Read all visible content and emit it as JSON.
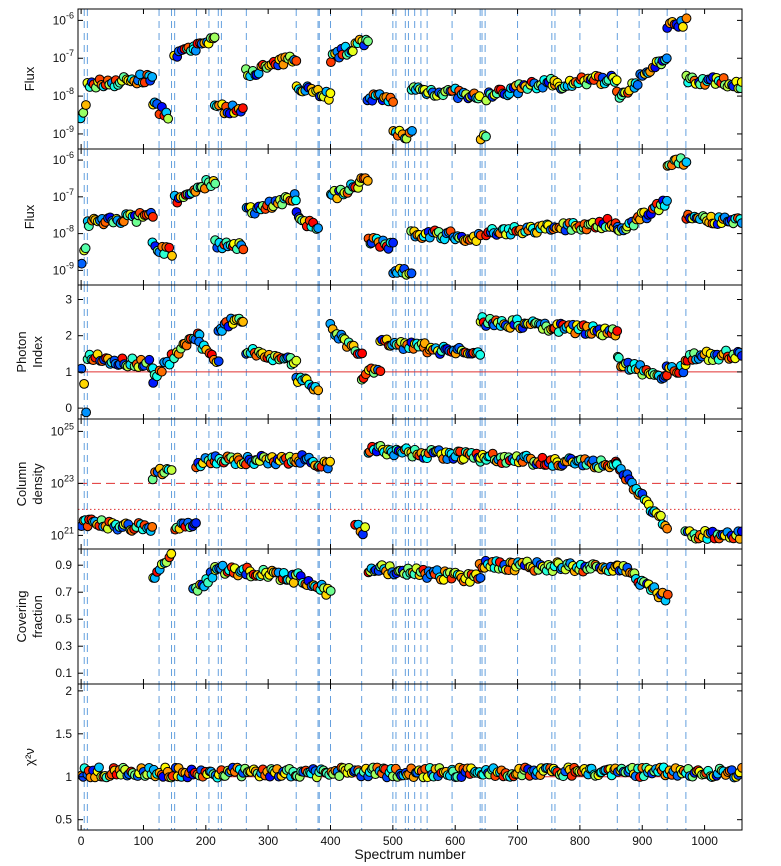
{
  "figure": {
    "xlabel": "Spectrum number",
    "xlim": [
      -5,
      1060
    ],
    "xticks": [
      0,
      100,
      200,
      300,
      400,
      500,
      600,
      700,
      800,
      900,
      1000
    ]
  },
  "event_lines": [
    5,
    10,
    125,
    145,
    150,
    185,
    205,
    220,
    225,
    265,
    345,
    380,
    382,
    400,
    450,
    500,
    505,
    520,
    525,
    535,
    545,
    555,
    595,
    640,
    643,
    648,
    700,
    755,
    760,
    800,
    860,
    895,
    940,
    970
  ],
  "chart_data": [
    {
      "type": "scatter",
      "panel": "flux-1",
      "ylabel": [
        "Flux"
      ],
      "yscale": "log",
      "ylim": [
        4e-10,
        2e-06
      ],
      "yticks": [
        {
          "v": 1e-09,
          "label": "10",
          "sup": "-9"
        },
        {
          "v": 1e-08,
          "label": "10",
          "sup": "-8"
        },
        {
          "v": 1e-07,
          "label": "10",
          "sup": "-7"
        },
        {
          "v": 1e-06,
          "label": "10",
          "sup": "-6"
        }
      ],
      "segments": [
        {
          "x0": 0,
          "x1": 8,
          "y0": 2e-09,
          "y1": 5e-09
        },
        {
          "x0": 10,
          "x1": 115,
          "y0": 2e-08,
          "y1": 3e-08
        },
        {
          "x0": 115,
          "x1": 140,
          "y0": 6e-09,
          "y1": 3e-09
        },
        {
          "x0": 150,
          "x1": 180,
          "y0": 1e-07,
          "y1": 2e-07
        },
        {
          "x0": 180,
          "x1": 215,
          "y0": 1.5e-07,
          "y1": 4e-07
        },
        {
          "x0": 215,
          "x1": 260,
          "y0": 5e-09,
          "y1": 4e-09
        },
        {
          "x0": 265,
          "x1": 345,
          "y0": 4e-08,
          "y1": 1e-07
        },
        {
          "x0": 345,
          "x1": 400,
          "y0": 2e-08,
          "y1": 1e-08
        },
        {
          "x0": 400,
          "x1": 460,
          "y0": 1e-07,
          "y1": 3e-07
        },
        {
          "x0": 460,
          "x1": 500,
          "y0": 1e-08,
          "y1": 7e-09
        },
        {
          "x0": 500,
          "x1": 530,
          "y0": 1e-09,
          "y1": 1e-09
        },
        {
          "x0": 530,
          "x1": 595,
          "y0": 1.5e-08,
          "y1": 1.2e-08
        },
        {
          "x0": 600,
          "x1": 640,
          "y0": 1.2e-08,
          "y1": 8e-09
        },
        {
          "x0": 640,
          "x1": 650,
          "y0": 8e-10,
          "y1": 1e-09
        },
        {
          "x0": 650,
          "x1": 760,
          "y0": 1e-08,
          "y1": 2.5e-08
        },
        {
          "x0": 760,
          "x1": 860,
          "y0": 2e-08,
          "y1": 3e-08
        },
        {
          "x0": 860,
          "x1": 940,
          "y0": 1e-08,
          "y1": 1e-07
        },
        {
          "x0": 940,
          "x1": 970,
          "y0": 8e-07,
          "y1": 9e-07
        },
        {
          "x0": 970,
          "x1": 1060,
          "y0": 3e-08,
          "y1": 2e-08
        }
      ]
    },
    {
      "type": "scatter",
      "panel": "flux-2",
      "ylabel": [
        "Flux"
      ],
      "yscale": "log",
      "ylim": [
        4e-10,
        2e-06
      ],
      "yticks": [
        {
          "v": 1e-09,
          "label": "10",
          "sup": "-9"
        },
        {
          "v": 1e-08,
          "label": "10",
          "sup": "-8"
        },
        {
          "v": 1e-07,
          "label": "10",
          "sup": "-7"
        },
        {
          "v": 1e-06,
          "label": "10",
          "sup": "-6"
        }
      ],
      "segments": [
        {
          "x0": 0,
          "x1": 8,
          "y0": 2e-09,
          "y1": 4e-09
        },
        {
          "x0": 10,
          "x1": 115,
          "y0": 2e-08,
          "y1": 3e-08
        },
        {
          "x0": 115,
          "x1": 145,
          "y0": 5e-09,
          "y1": 3e-09
        },
        {
          "x0": 150,
          "x1": 215,
          "y0": 8e-08,
          "y1": 3e-07
        },
        {
          "x0": 215,
          "x1": 260,
          "y0": 5e-09,
          "y1": 4e-09
        },
        {
          "x0": 265,
          "x1": 345,
          "y0": 4e-08,
          "y1": 1e-07
        },
        {
          "x0": 345,
          "x1": 380,
          "y0": 3e-08,
          "y1": 1.5e-08
        },
        {
          "x0": 400,
          "x1": 460,
          "y0": 1e-07,
          "y1": 3e-07
        },
        {
          "x0": 460,
          "x1": 500,
          "y0": 6e-09,
          "y1": 5e-09
        },
        {
          "x0": 500,
          "x1": 530,
          "y0": 1e-09,
          "y1": 1e-09
        },
        {
          "x0": 530,
          "x1": 640,
          "y0": 1e-08,
          "y1": 8e-09
        },
        {
          "x0": 650,
          "x1": 860,
          "y0": 1e-08,
          "y1": 2e-08
        },
        {
          "x0": 860,
          "x1": 940,
          "y0": 1e-08,
          "y1": 8e-08
        },
        {
          "x0": 940,
          "x1": 970,
          "y0": 8e-07,
          "y1": 9e-07
        },
        {
          "x0": 970,
          "x1": 1060,
          "y0": 2.5e-08,
          "y1": 2e-08
        }
      ]
    },
    {
      "type": "scatter",
      "panel": "photon-index",
      "ylabel": [
        "Photon",
        "Index"
      ],
      "yscale": "linear",
      "ylim": [
        -0.3,
        3.4
      ],
      "yticks": [
        {
          "v": 0,
          "label": "0"
        },
        {
          "v": 1,
          "label": "1"
        },
        {
          "v": 2,
          "label": "2"
        },
        {
          "v": 3,
          "label": "3"
        }
      ],
      "ref_lines": [
        {
          "y": 1,
          "style": "solid",
          "color": "#e03030"
        }
      ],
      "segments": [
        {
          "x0": 0,
          "x1": 8,
          "y0": 1.2,
          "y1": 0
        },
        {
          "x0": 10,
          "x1": 115,
          "y0": 1.4,
          "y1": 1.2
        },
        {
          "x0": 115,
          "x1": 145,
          "y0": 0.8,
          "y1": 1.4
        },
        {
          "x0": 150,
          "x1": 190,
          "y0": 1.5,
          "y1": 2.0
        },
        {
          "x0": 190,
          "x1": 220,
          "y0": 1.8,
          "y1": 1.3
        },
        {
          "x0": 220,
          "x1": 260,
          "y0": 2.2,
          "y1": 2.5
        },
        {
          "x0": 265,
          "x1": 345,
          "y0": 1.6,
          "y1": 1.3
        },
        {
          "x0": 345,
          "x1": 380,
          "y0": 0.8,
          "y1": 0.6
        },
        {
          "x0": 400,
          "x1": 450,
          "y0": 2.2,
          "y1": 1.4
        },
        {
          "x0": 450,
          "x1": 480,
          "y0": 0.9,
          "y1": 1.1
        },
        {
          "x0": 480,
          "x1": 640,
          "y0": 1.8,
          "y1": 1.5
        },
        {
          "x0": 640,
          "x1": 860,
          "y0": 2.4,
          "y1": 2.1
        },
        {
          "x0": 860,
          "x1": 940,
          "y0": 1.3,
          "y1": 0.8
        },
        {
          "x0": 940,
          "x1": 970,
          "y0": 1.1,
          "y1": 1.1
        },
        {
          "x0": 970,
          "x1": 1060,
          "y0": 1.4,
          "y1": 1.5
        }
      ]
    },
    {
      "type": "scatter",
      "panel": "column-density",
      "ylabel": [
        "Column",
        "density"
      ],
      "yscale": "log",
      "ylim": [
        3e+20,
        3e+25
      ],
      "yticks": [
        {
          "v": 1e+21,
          "label": "10",
          "sup": "21"
        },
        {
          "v": 1e+23,
          "label": "10",
          "sup": "23"
        },
        {
          "v": 1e+25,
          "label": "10",
          "sup": "25"
        }
      ],
      "ref_lines": [
        {
          "y": 1e+23,
          "style": "dashed",
          "color": "#e03030"
        },
        {
          "y": 1e+22,
          "style": "dotted",
          "color": "#e03030"
        }
      ],
      "segments": [
        {
          "x0": 0,
          "x1": 115,
          "y0": 3e+21,
          "y1": 2e+21
        },
        {
          "x0": 115,
          "x1": 145,
          "y0": 2e+23,
          "y1": 4e+23
        },
        {
          "x0": 150,
          "x1": 185,
          "y0": 2e+21,
          "y1": 3e+21
        },
        {
          "x0": 185,
          "x1": 215,
          "y0": 5e+23,
          "y1": 1e+24
        },
        {
          "x0": 215,
          "x1": 345,
          "y0": 8e+23,
          "y1": 8e+23
        },
        {
          "x0": 345,
          "x1": 400,
          "y0": 1e+24,
          "y1": 5e+23
        },
        {
          "x0": 440,
          "x1": 455,
          "y0": 2e+21,
          "y1": 1.5e+21
        },
        {
          "x0": 460,
          "x1": 640,
          "y0": 2e+24,
          "y1": 1e+24
        },
        {
          "x0": 640,
          "x1": 860,
          "y0": 1e+24,
          "y1": 5e+23
        },
        {
          "x0": 860,
          "x1": 940,
          "y0": 5e+23,
          "y1": 2e+21
        },
        {
          "x0": 970,
          "x1": 1060,
          "y0": 1e+21,
          "y1": 1e+21
        }
      ]
    },
    {
      "type": "scatter",
      "panel": "covering-fraction",
      "ylabel": [
        "Covering",
        "fraction"
      ],
      "yscale": "linear",
      "ylim": [
        0.02,
        1.02
      ],
      "yticks": [
        {
          "v": 0.1,
          "label": "0.1"
        },
        {
          "v": 0.3,
          "label": "0.3"
        },
        {
          "v": 0.5,
          "label": "0.5"
        },
        {
          "v": 0.7,
          "label": "0.7"
        },
        {
          "v": 0.9,
          "label": "0.9"
        }
      ],
      "segments": [
        {
          "x0": 115,
          "x1": 145,
          "y0": 0.8,
          "y1": 0.95
        },
        {
          "x0": 180,
          "x1": 215,
          "y0": 0.7,
          "y1": 0.85
        },
        {
          "x0": 215,
          "x1": 345,
          "y0": 0.88,
          "y1": 0.8
        },
        {
          "x0": 345,
          "x1": 400,
          "y0": 0.82,
          "y1": 0.7
        },
        {
          "x0": 460,
          "x1": 640,
          "y0": 0.88,
          "y1": 0.8
        },
        {
          "x0": 640,
          "x1": 860,
          "y0": 0.9,
          "y1": 0.88
        },
        {
          "x0": 860,
          "x1": 940,
          "y0": 0.9,
          "y1": 0.65
        }
      ]
    },
    {
      "type": "scatter",
      "panel": "chi-square",
      "ylabel": [
        "χ²ν"
      ],
      "yscale": "linear",
      "ylim": [
        0.38,
        2.08
      ],
      "yticks": [
        {
          "v": 0.5,
          "label": "0.5"
        },
        {
          "v": 1,
          "label": "1"
        },
        {
          "v": 1.5,
          "label": "1.5"
        },
        {
          "v": 2,
          "label": "2"
        }
      ],
      "ref_lines": [
        {
          "y": 1,
          "style": "solid",
          "color": "#e03030"
        }
      ],
      "segments": [
        {
          "x0": 0,
          "x1": 1060,
          "y0": 1.05,
          "y1": 1.05
        }
      ]
    }
  ]
}
